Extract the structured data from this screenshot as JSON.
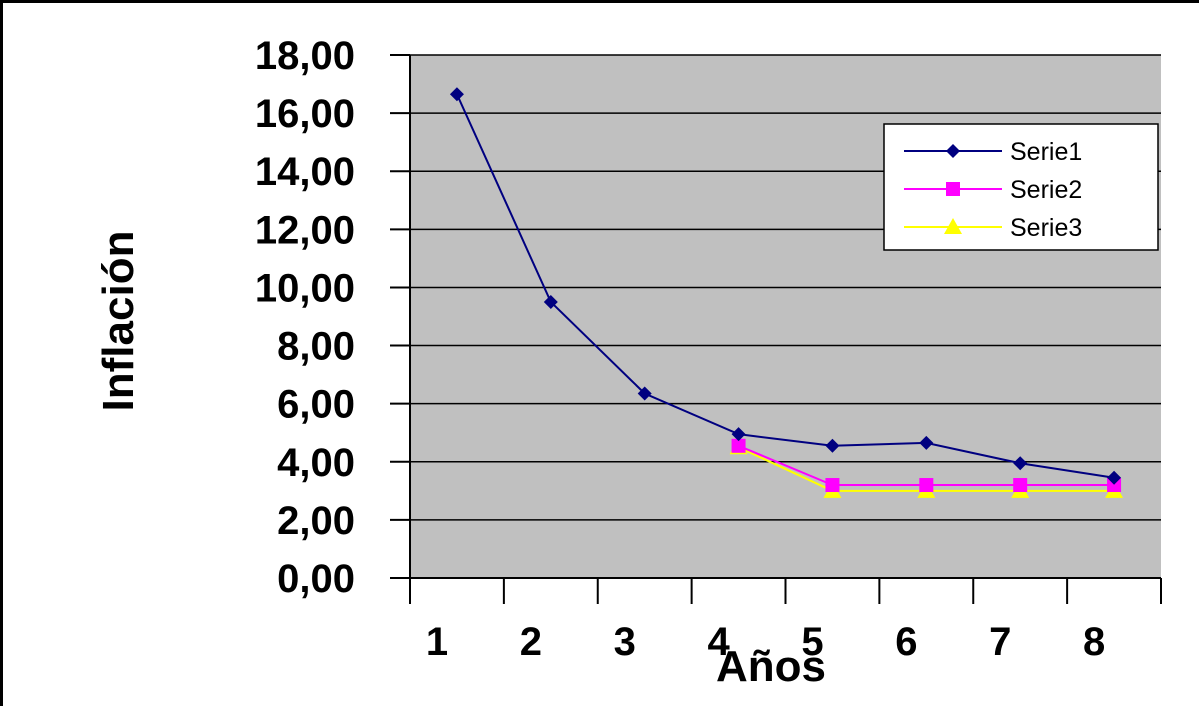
{
  "chart_data": {
    "type": "line",
    "title": "",
    "xlabel": "Años",
    "ylabel": "Inflación",
    "categories": [
      "1",
      "2",
      "3",
      "4",
      "5",
      "6",
      "7",
      "8"
    ],
    "yticks": [
      "0,00",
      "2,00",
      "4,00",
      "6,00",
      "8,00",
      "10,00",
      "12,00",
      "14,00",
      "16,00",
      "18,00"
    ],
    "ylim": [
      0,
      18
    ],
    "grid": true,
    "legend_position": "top-right",
    "plot_background": "#c0c0c0",
    "series": [
      {
        "name": "Serie1",
        "color": "#000080",
        "marker": "diamond",
        "values": [
          16.65,
          9.5,
          6.35,
          4.95,
          4.55,
          4.65,
          3.95,
          3.45
        ]
      },
      {
        "name": "Serie2",
        "color": "#ff00ff",
        "marker": "square",
        "values": [
          null,
          null,
          null,
          4.55,
          3.2,
          3.2,
          3.2,
          3.2
        ]
      },
      {
        "name": "Serie3",
        "color": "#ffff00",
        "marker": "triangle",
        "values": [
          null,
          null,
          null,
          4.5,
          3.0,
          3.0,
          3.0,
          3.0
        ]
      }
    ]
  }
}
